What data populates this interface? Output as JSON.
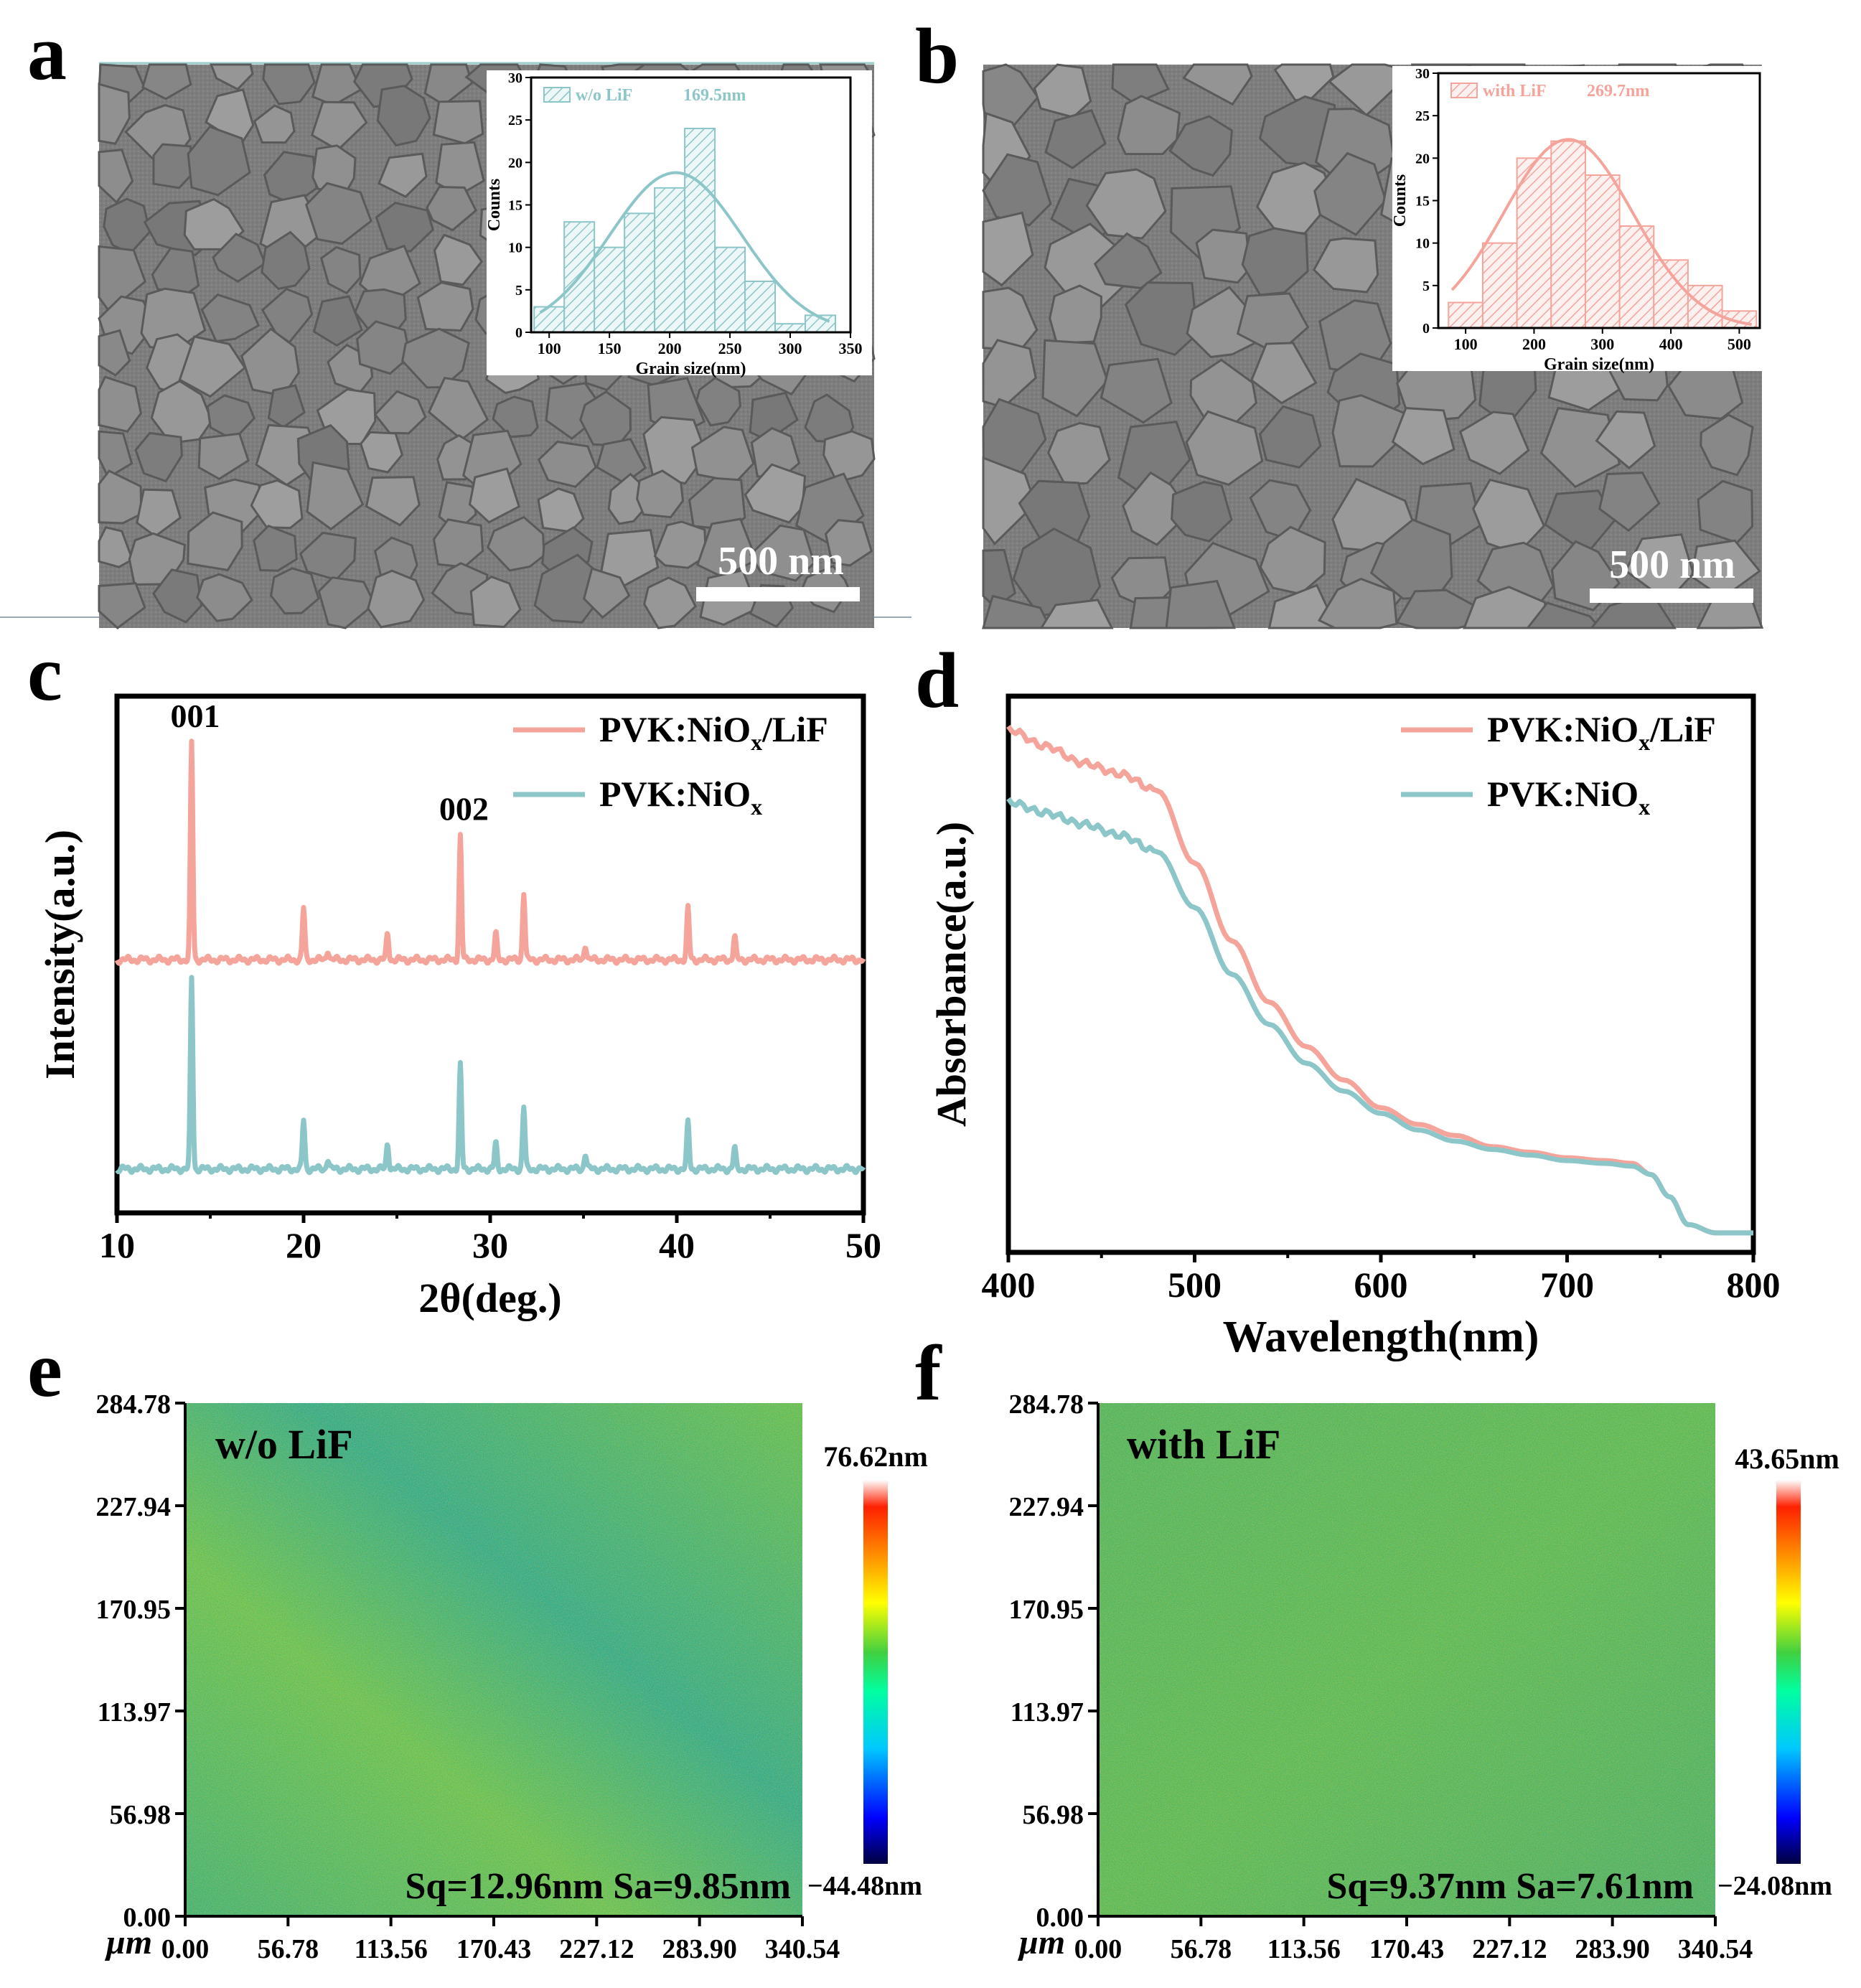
{
  "panels": {
    "a": {
      "letter": "a",
      "scale_bar": "500 nm"
    },
    "b": {
      "letter": "b",
      "scale_bar": "500 nm"
    },
    "c": {
      "letter": "c"
    },
    "d": {
      "letter": "d"
    },
    "e": {
      "letter": "e",
      "label": "w/o LiF",
      "stats": "Sq=12.96nm Sa=9.85nm",
      "cbar_max": "76.62nm",
      "cbar_min": "−44.48nm"
    },
    "f": {
      "letter": "f",
      "label": "with LiF",
      "stats": "Sq=9.37nm Sa=7.61nm",
      "cbar_max": "43.65nm",
      "cbar_min": "−24.08nm"
    }
  },
  "colors": {
    "pink": "#f5a49c",
    "teal": "#8cc6c8",
    "frame": "#000000"
  },
  "chart_data": [
    {
      "id": "a-inset",
      "type": "bar",
      "legend": "w/o LiF",
      "legend_value": "169.5nm",
      "xlabel": "Grain size(nm)",
      "ylabel": "Counts",
      "xlim": [
        85,
        350
      ],
      "ylim": [
        0,
        30
      ],
      "xticks": [
        100,
        150,
        200,
        250,
        300,
        350
      ],
      "yticks": [
        0,
        5,
        10,
        15,
        20,
        25,
        30
      ],
      "bins": [
        100,
        125,
        150,
        175,
        200,
        225,
        250,
        275,
        300,
        325
      ],
      "bin_width": 25,
      "values": [
        3,
        13,
        10,
        14,
        17,
        24,
        10,
        6,
        1,
        2
      ],
      "fit": {
        "mean": 205,
        "sd": 55,
        "peak": 18.8
      }
    },
    {
      "id": "b-inset",
      "type": "bar",
      "legend": "with LiF",
      "legend_value": "269.7nm",
      "xlabel": "Grain size(nm)",
      "ylabel": "Counts",
      "xlim": [
        60,
        530
      ],
      "ylim": [
        0,
        30
      ],
      "xticks": [
        100,
        200,
        300,
        400,
        500
      ],
      "yticks": [
        0,
        5,
        10,
        15,
        20,
        25,
        30
      ],
      "bins": [
        100,
        150,
        200,
        250,
        300,
        350,
        400,
        450,
        500
      ],
      "bin_width": 50,
      "values": [
        3,
        10,
        20,
        22,
        18,
        12,
        8,
        5,
        2
      ],
      "fit": {
        "mean": 250,
        "sd": 95,
        "peak": 22.2
      }
    },
    {
      "id": "c",
      "type": "line",
      "title": "",
      "xlabel": "2θ(deg.)",
      "ylabel": "Intensity(a.u.)",
      "xlim": [
        10,
        50
      ],
      "ylim": [
        0,
        1
      ],
      "xticks": [
        10,
        20,
        30,
        40,
        50
      ],
      "peak_labels": [
        {
          "text": "001",
          "x": 14
        },
        {
          "text": "002",
          "x": 28.4
        }
      ],
      "series": [
        {
          "name": "PVK:NiO",
          "sub": "x",
          "suffix": "/LiF",
          "color": "#f5a49c",
          "baseline": 0.49,
          "peaks": [
            [
              14.0,
              0.42
            ],
            [
              20.0,
              0.1
            ],
            [
              21.3,
              0.02
            ],
            [
              24.5,
              0.05
            ],
            [
              28.4,
              0.24
            ],
            [
              30.3,
              0.05
            ],
            [
              31.8,
              0.13
            ],
            [
              35.1,
              0.03
            ],
            [
              40.6,
              0.1
            ],
            [
              43.1,
              0.045
            ]
          ]
        },
        {
          "name": "PVK:NiO",
          "sub": "x",
          "suffix": "",
          "color": "#8cc6c8",
          "baseline": 0.085,
          "peaks": [
            [
              14.0,
              0.37
            ],
            [
              20.0,
              0.095
            ],
            [
              21.3,
              0.02
            ],
            [
              24.5,
              0.05
            ],
            [
              28.4,
              0.2
            ],
            [
              30.3,
              0.05
            ],
            [
              31.8,
              0.12
            ],
            [
              35.1,
              0.03
            ],
            [
              40.6,
              0.09
            ],
            [
              43.1,
              0.04
            ]
          ]
        }
      ]
    },
    {
      "id": "d",
      "type": "line",
      "title": "",
      "xlabel": "Wavelength(nm)",
      "ylabel": "Absorbance(a.u.)",
      "xlim": [
        400,
        800
      ],
      "ylim": [
        0,
        1
      ],
      "xticks": [
        400,
        500,
        600,
        700,
        800
      ],
      "series": [
        {
          "name": "PVK:NiO",
          "sub": "x",
          "suffix": "/LiF",
          "color": "#f5a49c",
          "x": [
            400,
            420,
            440,
            460,
            480,
            500,
            520,
            540,
            560,
            580,
            600,
            620,
            640,
            660,
            680,
            700,
            720,
            735,
            745,
            755,
            765,
            780,
            800
          ],
          "y": [
            0.94,
            0.91,
            0.88,
            0.86,
            0.83,
            0.7,
            0.56,
            0.45,
            0.37,
            0.31,
            0.26,
            0.23,
            0.21,
            0.19,
            0.18,
            0.17,
            0.165,
            0.16,
            0.14,
            0.1,
            0.05,
            0.035,
            0.035
          ]
        },
        {
          "name": "PVK:NiO",
          "sub": "x",
          "suffix": "",
          "color": "#8cc6c8",
          "x": [
            400,
            420,
            440,
            460,
            480,
            500,
            520,
            540,
            560,
            580,
            600,
            620,
            640,
            660,
            680,
            700,
            720,
            735,
            745,
            755,
            765,
            780,
            800
          ],
          "y": [
            0.81,
            0.79,
            0.77,
            0.75,
            0.72,
            0.62,
            0.5,
            0.41,
            0.34,
            0.29,
            0.25,
            0.22,
            0.2,
            0.185,
            0.175,
            0.165,
            0.16,
            0.155,
            0.14,
            0.1,
            0.05,
            0.035,
            0.035
          ]
        }
      ]
    },
    {
      "id": "e",
      "type": "heatmap",
      "xlabel": "μm",
      "xlim": [
        0,
        340.54
      ],
      "ylim": [
        0,
        284.78
      ],
      "xticks": [
        "0.00",
        "56.78",
        "113.56",
        "170.43",
        "227.12",
        "283.90",
        "340.54"
      ],
      "yticks": [
        "0.00",
        "56.98",
        "113.97",
        "170.95",
        "227.94",
        "284.78"
      ],
      "zmin": -44.48,
      "zmax": 76.62
    },
    {
      "id": "f",
      "type": "heatmap",
      "xlabel": "μm",
      "xlim": [
        0,
        340.54
      ],
      "ylim": [
        0,
        284.78
      ],
      "xticks": [
        "0.00",
        "56.78",
        "113.56",
        "170.43",
        "227.12",
        "283.90",
        "340.54"
      ],
      "yticks": [
        "0.00",
        "56.98",
        "113.97",
        "170.95",
        "227.94",
        "284.78"
      ],
      "zmin": -24.08,
      "zmax": 43.65
    }
  ]
}
